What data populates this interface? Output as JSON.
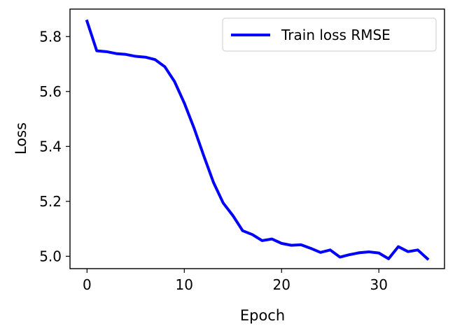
{
  "chart_data": {
    "type": "line",
    "title": "",
    "xlabel": "Epoch",
    "ylabel": "Loss",
    "xlim": [
      -1.75,
      36.75
    ],
    "ylim": [
      4.955,
      5.9
    ],
    "xticks": [
      0,
      10,
      20,
      30
    ],
    "yticks": [
      5.0,
      5.2,
      5.4,
      5.6,
      5.8
    ],
    "ytick_labels": [
      "5.0",
      "5.2",
      "5.4",
      "5.6",
      "5.8"
    ],
    "grid": false,
    "legend_position": "top-right",
    "x": [
      0,
      1,
      2,
      3,
      4,
      5,
      6,
      7,
      8,
      9,
      10,
      11,
      12,
      13,
      14,
      15,
      16,
      17,
      18,
      19,
      20,
      21,
      22,
      23,
      24,
      25,
      26,
      27,
      28,
      29,
      30,
      31,
      32,
      33,
      34,
      35
    ],
    "series": [
      {
        "name": "Train loss RMSE",
        "color": "#0000ff",
        "values": [
          5.856,
          5.748,
          5.745,
          5.738,
          5.735,
          5.728,
          5.725,
          5.716,
          5.69,
          5.636,
          5.558,
          5.467,
          5.366,
          5.269,
          5.194,
          5.148,
          5.093,
          5.079,
          5.057,
          5.063,
          5.047,
          5.04,
          5.042,
          5.029,
          5.014,
          5.023,
          4.997,
          5.006,
          5.013,
          5.016,
          5.012,
          4.991,
          5.035,
          5.017,
          5.023,
          4.991
        ]
      }
    ]
  }
}
